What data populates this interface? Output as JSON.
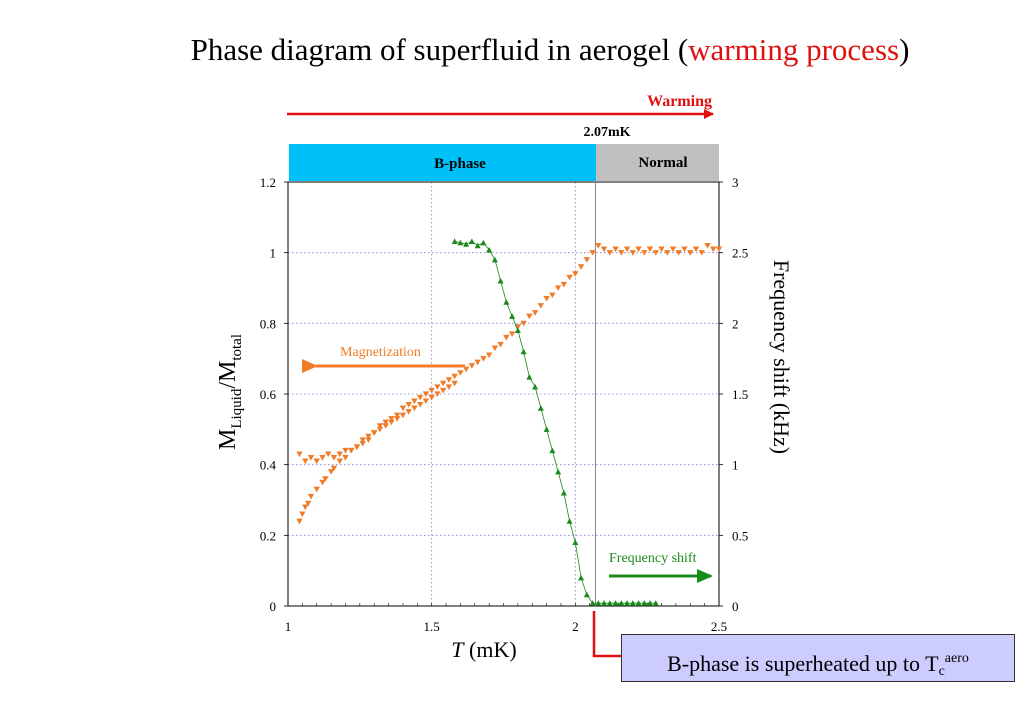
{
  "title": {
    "main": "Phase diagram of superfluid in aerogel (",
    "accent": "warming process",
    "close": ")"
  },
  "colors": {
    "magnetization": "#f07c28",
    "frequency": "#1a8a1a",
    "b_phase_band": "#00c0f8",
    "normal_band": "#c0c0c0",
    "warming_arrow": "#e01010",
    "callout_bg": "#ccccff",
    "grid": "#7a7acc"
  },
  "annotations": {
    "warming": "Warming",
    "transition_temp": "2.07mK",
    "b_phase": "B-phase",
    "normal": "Normal",
    "magnetization": "Magnetization",
    "frequency_shift": "Frequency shift"
  },
  "callout": {
    "prefix": "B-phase is superheated up to T",
    "sub": "c",
    "sup": "aero"
  },
  "chart_data": {
    "type": "scatter",
    "xlabel_italic": "T",
    "xlabel_unit": "(mK)",
    "ylabel_main": "M",
    "ylabel_sub1": "Liquid",
    "ylabel_mid": "/M",
    "ylabel_sub2": "total",
    "y2label": "Frequency shift (kHz)",
    "xlim": [
      1,
      2.5
    ],
    "ylim": [
      0,
      1.2
    ],
    "y2lim": [
      0,
      3
    ],
    "xticks": [
      "1",
      "1.5",
      "2",
      "2.5"
    ],
    "yticks": [
      "0",
      "0.2",
      "0.4",
      "0.6",
      "0.8",
      "1",
      "1.2"
    ],
    "y2ticks": [
      "0",
      "0.5",
      "1",
      "1.5",
      "2",
      "2.5",
      "3"
    ],
    "grid": true,
    "phase_boundary": 2.07,
    "series": [
      {
        "name": "Magnetization",
        "axis": "left",
        "marker": "triangle-down",
        "points": [
          [
            1.04,
            0.24
          ],
          [
            1.05,
            0.26
          ],
          [
            1.06,
            0.28
          ],
          [
            1.07,
            0.29
          ],
          [
            1.08,
            0.31
          ],
          [
            1.1,
            0.33
          ],
          [
            1.12,
            0.35
          ],
          [
            1.13,
            0.36
          ],
          [
            1.15,
            0.38
          ],
          [
            1.16,
            0.39
          ],
          [
            1.18,
            0.41
          ],
          [
            1.2,
            0.42
          ],
          [
            1.22,
            0.44
          ],
          [
            1.24,
            0.45
          ],
          [
            1.26,
            0.47
          ],
          [
            1.28,
            0.48
          ],
          [
            1.3,
            0.49
          ],
          [
            1.32,
            0.51
          ],
          [
            1.34,
            0.52
          ],
          [
            1.36,
            0.53
          ],
          [
            1.38,
            0.54
          ],
          [
            1.4,
            0.56
          ],
          [
            1.42,
            0.57
          ],
          [
            1.44,
            0.58
          ],
          [
            1.46,
            0.59
          ],
          [
            1.48,
            0.6
          ],
          [
            1.5,
            0.61
          ],
          [
            1.52,
            0.62
          ],
          [
            1.54,
            0.63
          ],
          [
            1.56,
            0.64
          ],
          [
            1.58,
            0.65
          ],
          [
            1.6,
            0.66
          ],
          [
            1.62,
            0.67
          ],
          [
            1.64,
            0.68
          ],
          [
            1.66,
            0.69
          ],
          [
            1.68,
            0.7
          ],
          [
            1.7,
            0.71
          ],
          [
            1.72,
            0.73
          ],
          [
            1.74,
            0.74
          ],
          [
            1.76,
            0.76
          ],
          [
            1.78,
            0.77
          ],
          [
            1.8,
            0.79
          ],
          [
            1.82,
            0.8
          ],
          [
            1.84,
            0.82
          ],
          [
            1.86,
            0.83
          ],
          [
            1.88,
            0.85
          ],
          [
            1.9,
            0.87
          ],
          [
            1.92,
            0.88
          ],
          [
            1.94,
            0.9
          ],
          [
            1.96,
            0.91
          ],
          [
            1.98,
            0.93
          ],
          [
            2.0,
            0.94
          ],
          [
            2.02,
            0.96
          ],
          [
            2.04,
            0.98
          ],
          [
            2.06,
            1.0
          ],
          [
            2.08,
            1.02
          ],
          [
            2.1,
            1.01
          ],
          [
            2.12,
            1.0
          ],
          [
            2.14,
            1.01
          ],
          [
            2.16,
            1.0
          ],
          [
            2.18,
            1.01
          ],
          [
            2.2,
            1.0
          ],
          [
            2.22,
            1.01
          ],
          [
            2.24,
            1.0
          ],
          [
            2.26,
            1.01
          ],
          [
            2.28,
            1.0
          ],
          [
            2.3,
            1.01
          ],
          [
            2.32,
            1.0
          ],
          [
            2.34,
            1.01
          ],
          [
            2.36,
            1.0
          ],
          [
            2.38,
            1.01
          ],
          [
            2.4,
            1.0
          ],
          [
            2.42,
            1.01
          ],
          [
            2.44,
            1.0
          ],
          [
            2.46,
            1.02
          ],
          [
            2.48,
            1.01
          ],
          [
            2.5,
            1.01
          ],
          [
            1.04,
            0.43
          ],
          [
            1.06,
            0.41
          ],
          [
            1.08,
            0.42
          ],
          [
            1.1,
            0.41
          ],
          [
            1.12,
            0.42
          ],
          [
            1.14,
            0.43
          ],
          [
            1.16,
            0.42
          ],
          [
            1.18,
            0.43
          ],
          [
            1.2,
            0.44
          ],
          [
            1.22,
            0.44
          ],
          [
            1.24,
            0.45
          ],
          [
            1.26,
            0.46
          ],
          [
            1.28,
            0.47
          ],
          [
            1.3,
            0.49
          ],
          [
            1.32,
            0.5
          ],
          [
            1.34,
            0.51
          ],
          [
            1.36,
            0.52
          ],
          [
            1.38,
            0.53
          ],
          [
            1.4,
            0.54
          ],
          [
            1.42,
            0.55
          ],
          [
            1.44,
            0.56
          ],
          [
            1.46,
            0.57
          ],
          [
            1.48,
            0.58
          ],
          [
            1.5,
            0.59
          ],
          [
            1.52,
            0.6
          ],
          [
            1.54,
            0.61
          ],
          [
            1.56,
            0.62
          ],
          [
            1.58,
            0.63
          ]
        ]
      },
      {
        "name": "Frequency shift",
        "axis": "right",
        "marker": "triangle-up",
        "points": [
          [
            1.58,
            2.58
          ],
          [
            1.6,
            2.57
          ],
          [
            1.62,
            2.56
          ],
          [
            1.64,
            2.58
          ],
          [
            1.66,
            2.55
          ],
          [
            1.68,
            2.57
          ],
          [
            1.7,
            2.52
          ],
          [
            1.72,
            2.45
          ],
          [
            1.74,
            2.3
          ],
          [
            1.76,
            2.15
          ],
          [
            1.78,
            2.05
          ],
          [
            1.8,
            1.95
          ],
          [
            1.82,
            1.8
          ],
          [
            1.84,
            1.62
          ],
          [
            1.86,
            1.55
          ],
          [
            1.88,
            1.4
          ],
          [
            1.9,
            1.25
          ],
          [
            1.92,
            1.1
          ],
          [
            1.94,
            0.95
          ],
          [
            1.96,
            0.8
          ],
          [
            1.98,
            0.6
          ],
          [
            2.0,
            0.45
          ],
          [
            2.02,
            0.2
          ],
          [
            2.04,
            0.08
          ],
          [
            2.06,
            0.02
          ],
          [
            2.08,
            0.02
          ],
          [
            2.1,
            0.02
          ],
          [
            2.12,
            0.02
          ],
          [
            2.14,
            0.02
          ],
          [
            2.16,
            0.02
          ],
          [
            2.18,
            0.02
          ],
          [
            2.2,
            0.02
          ],
          [
            2.22,
            0.02
          ],
          [
            2.24,
            0.02
          ],
          [
            2.26,
            0.02
          ],
          [
            2.28,
            0.02
          ]
        ]
      }
    ]
  }
}
